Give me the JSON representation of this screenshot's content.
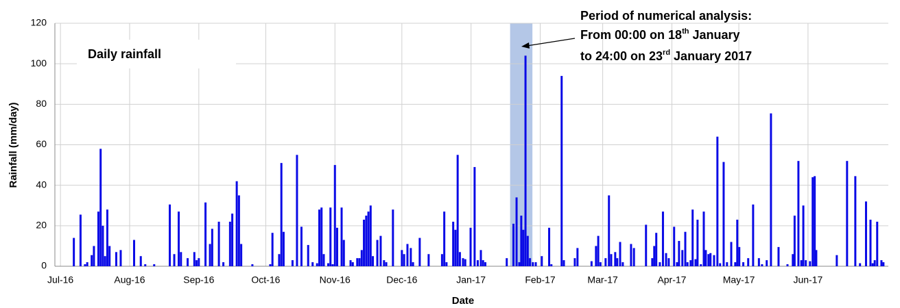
{
  "chart_data": {
    "type": "bar",
    "annotations": [
      "Daily rainfall"
    ],
    "period_note": {
      "line1": "Period of numerical analysis:",
      "line2": [
        "From 00:00 on 18",
        "th",
        " January"
      ],
      "line3": [
        "to 24:00 on 23",
        "rd",
        " January 2017"
      ]
    },
    "x_label": "Date",
    "y_label": "Rainfall (mm/day)",
    "color": "#0a0ae6",
    "highlight_color": "#b4c7e7",
    "highlight_x": [
      201.5,
      211.5
    ],
    "xlim": [
      -2.5,
      371
    ],
    "ylim": [
      0,
      120
    ],
    "yticks": [
      0,
      20,
      40,
      60,
      80,
      100,
      120
    ],
    "grid": true,
    "xticks": [
      {
        "value": 0,
        "label": "Jul-16"
      },
      {
        "value": 31,
        "label": "Aug-16"
      },
      {
        "value": 62,
        "label": "Sep-16"
      },
      {
        "value": 92,
        "label": "Oct-16"
      },
      {
        "value": 123,
        "label": "Nov-16"
      },
      {
        "value": 153,
        "label": "Dec-16"
      },
      {
        "value": 184,
        "label": "Jan-17"
      },
      {
        "value": 215,
        "label": "Feb-17"
      },
      {
        "value": 243,
        "label": "Mar-17"
      },
      {
        "value": 274,
        "label": "Apr-17"
      },
      {
        "value": 304,
        "label": "May-17"
      },
      {
        "value": 335,
        "label": "Jun-17"
      }
    ],
    "x": [
      6,
      9,
      11,
      12,
      14,
      15,
      17,
      18,
      19,
      20,
      21,
      22,
      25,
      27,
      33,
      36,
      38,
      42,
      49,
      51,
      53,
      54,
      57,
      60,
      61,
      62,
      65,
      67,
      68,
      71,
      73,
      76,
      77,
      79,
      80,
      81,
      86,
      94,
      95,
      98,
      99,
      100,
      104,
      106,
      108,
      111,
      113,
      115,
      116,
      117,
      118,
      120,
      121,
      122,
      123,
      124,
      126,
      127,
      130,
      131,
      133,
      134,
      135,
      136,
      137,
      138,
      139,
      140,
      142,
      143.5,
      145,
      146,
      149,
      153,
      154,
      155.5,
      157,
      158,
      161,
      165,
      171,
      172,
      173,
      176,
      177,
      178,
      179,
      180.4,
      181.4,
      183.8,
      185.6,
      187,
      188.4,
      189.4,
      190.4,
      200,
      203,
      204.4,
      205.6,
      206.5,
      207.4,
      208.4,
      209.4,
      210.4,
      211.7,
      213,
      215.7,
      219,
      220,
      224.6,
      225.6,
      230.5,
      231.7,
      238,
      240,
      241,
      242,
      244.3,
      245.8,
      246.8,
      248.6,
      249.5,
      250.8,
      252,
      255.7,
      257,
      262.4,
      265.2,
      266.1,
      267,
      268.6,
      270,
      271.4,
      272.6,
      275,
      276.3,
      277.2,
      278.7,
      280,
      281,
      282.4,
      283.3,
      284.6,
      285.5,
      287,
      288.3,
      289.2,
      290.4,
      291.3,
      292.9,
      294.4,
      295.6,
      297.2,
      298.7,
      300.6,
      302.4,
      303.3,
      304.2,
      306,
      308.2,
      310.4,
      313,
      314.4,
      316.5,
      318.4,
      321.8,
      325.8,
      328.2,
      329,
      330.7,
      332,
      332.9,
      334,
      335.9,
      337.1,
      338,
      338.7,
      347.9,
      352.5,
      356.2,
      358.3,
      361,
      363,
      364,
      364.9,
      366,
      367.9,
      368.8
    ],
    "values": [
      14,
      25.5,
      1,
      2,
      5.5,
      10,
      27,
      58,
      20,
      5,
      28,
      10,
      7,
      8,
      13,
      5,
      1,
      1,
      30.5,
      6,
      27,
      7,
      4,
      7,
      3,
      4,
      31.5,
      11,
      18.5,
      22,
      2,
      22,
      26,
      42,
      35,
      11,
      1,
      1,
      16.5,
      6,
      51,
      17,
      3,
      55,
      19.5,
      10.5,
      2,
      1.5,
      28,
      29,
      6,
      1.5,
      29,
      1,
      50,
      19,
      29,
      13,
      3,
      2,
      4,
      4,
      8,
      23,
      25,
      27,
      30,
      5,
      13,
      15,
      3,
      2,
      28,
      8,
      6,
      11,
      9,
      2,
      14,
      6,
      6,
      27,
      2,
      22,
      18,
      55,
      7,
      4,
      3.5,
      19,
      49,
      3,
      8,
      3,
      2,
      4,
      21,
      34,
      2,
      25,
      18,
      104,
      15,
      4,
      2,
      2,
      5,
      19,
      1,
      94,
      3,
      4,
      9,
      2.5,
      10,
      15,
      2,
      4,
      35,
      6,
      7,
      4,
      12,
      2,
      11,
      9,
      20.5,
      4,
      10,
      16.5,
      2,
      27,
      6.5,
      4,
      19.5,
      2,
      12.5,
      8,
      17,
      2,
      3,
      28,
      3.5,
      23,
      1,
      27,
      8,
      6,
      6.5,
      5.5,
      64,
      1.5,
      51.5,
      2,
      12,
      2,
      23,
      9.5,
      2,
      4,
      30.5,
      4,
      1,
      3,
      75.5,
      9.5,
      1,
      6,
      25,
      52,
      3,
      30,
      3,
      2.5,
      44,
      44.5,
      8,
      5.5,
      52,
      44.5,
      1.5,
      32,
      23,
      1.5,
      3,
      22,
      3,
      2
    ]
  }
}
